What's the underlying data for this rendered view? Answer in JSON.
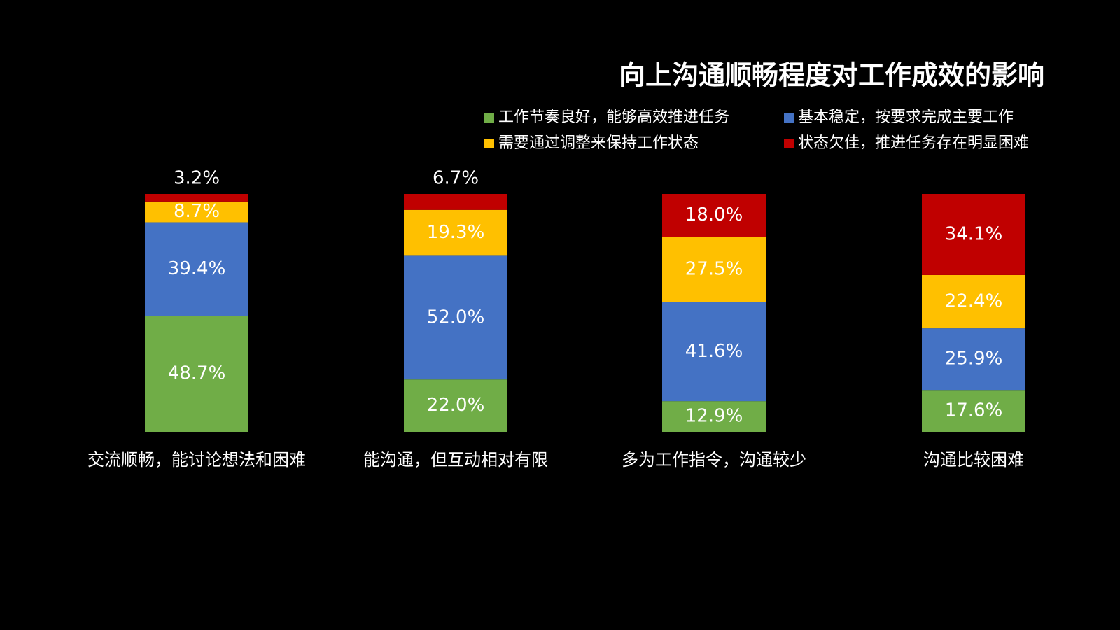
{
  "chart_data": {
    "type": "stacked_bar_100",
    "title": "向上沟通顺畅程度对工作成效的影响",
    "categories": [
      "交流顺畅，能讨论想法和困难",
      "能沟通，但互动相对有限",
      "多为工作指令，沟通较少",
      "沟通比较困难"
    ],
    "ylim": [
      0,
      100
    ],
    "series": [
      {
        "name": "工作节奏良好，能够高效推进任务",
        "color": "#70ad47",
        "values": [
          48.7,
          22.0,
          12.9,
          17.6
        ],
        "value_labels": [
          "48.7%",
          "22.0%",
          "12.9%",
          "17.6%"
        ]
      },
      {
        "name": "基本稳定，按要求完成主要工作",
        "color": "#4472c4",
        "values": [
          39.4,
          52.0,
          41.6,
          25.9
        ],
        "value_labels": [
          "39.4%",
          "52.0%",
          "41.6%",
          "25.9%"
        ]
      },
      {
        "name": "需要通过调整来保持工作状态",
        "color": "#ffc000",
        "values": [
          8.7,
          19.3,
          27.5,
          22.4
        ],
        "value_labels": [
          "8.7%",
          "19.3%",
          "27.5%",
          "22.4%"
        ]
      },
      {
        "name": "状态欠佳，推进任务存在明显困难",
        "color": "#c00000",
        "values": [
          3.2,
          6.7,
          18.0,
          34.1
        ],
        "value_labels": [
          "3.2%",
          "6.7%",
          "18.0%",
          "34.1%"
        ]
      }
    ]
  }
}
